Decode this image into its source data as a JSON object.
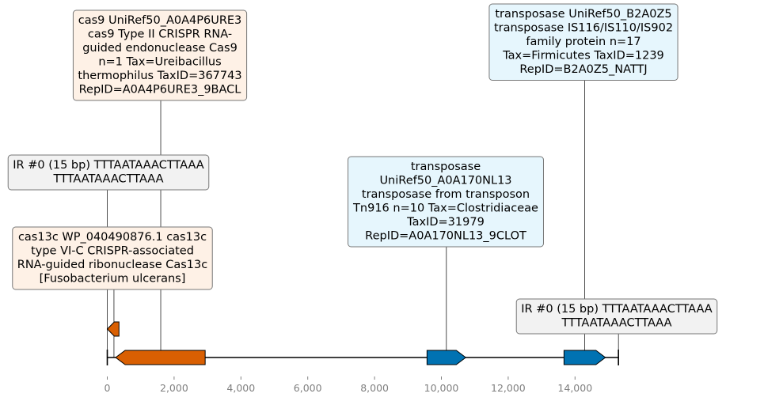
{
  "axis": {
    "xlim": [
      0,
      15500
    ],
    "ticks": [
      {
        "value": 0,
        "label": "0"
      },
      {
        "value": 2000,
        "label": "2,000"
      },
      {
        "value": 4000,
        "label": "4,000"
      },
      {
        "value": 6000,
        "label": "6,000"
      },
      {
        "value": 8000,
        "label": "8,000"
      },
      {
        "value": 10000,
        "label": "10,000"
      },
      {
        "value": 12000,
        "label": "12,000"
      },
      {
        "value": 14000,
        "label": "14,000"
      }
    ]
  },
  "sequence": {
    "start": 0,
    "end": 15300
  },
  "features": [
    {
      "id": "cas13c",
      "start": 0,
      "end": 350,
      "strand": -1,
      "track": "upper",
      "color": "#d95f02"
    },
    {
      "id": "cas9",
      "start": 250,
      "end": 2930,
      "strand": -1,
      "track": "main",
      "color": "#d95f02"
    },
    {
      "id": "transposase-tn916",
      "start": 9570,
      "end": 10730,
      "strand": 1,
      "track": "main",
      "color": "#0072b2"
    },
    {
      "id": "transposase-is116",
      "start": 13670,
      "end": 14910,
      "strand": 1,
      "track": "main",
      "color": "#0072b2"
    }
  ],
  "annotations": [
    {
      "id": "cas9-label",
      "anchor": 1600,
      "fill": "#fef1e6",
      "lines": [
        "cas9 UniRef50_A0A4P6URE3",
        "cas9 Type II CRISPR RNA-",
        "guided endonuclease Cas9",
        "n=1 Tax=Ureibacillus",
        "thermophilus TaxID=367743",
        "RepID=A0A4P6URE3_9BACL"
      ]
    },
    {
      "id": "ir-left-label",
      "anchor": 0,
      "fill": "#f2f2f2",
      "lines": [
        "IR #0 (15 bp) TTTAATAAACTTAAA",
        "TTTAATAAACTTAAA"
      ]
    },
    {
      "id": "cas13c-label",
      "anchor": 200,
      "fill": "#fef1e6",
      "lines": [
        "cas13c WP_040490876.1 cas13c",
        "type VI-C CRISPR-associated",
        "RNA-guided ribonuclease Cas13c",
        "[Fusobacterium ulcerans]"
      ]
    },
    {
      "id": "transposase-b2a0z5-label",
      "anchor": 14290,
      "fill": "#e6f6fd",
      "lines": [
        "transposase UniRef50_B2A0Z5",
        "transposase IS116/IS110/IS902",
        "family protein n=17",
        "Tax=Firmicutes TaxID=1239",
        "RepID=B2A0Z5_NATTJ"
      ]
    },
    {
      "id": "transposase-a0a170-label",
      "anchor": 10150,
      "fill": "#e6f6fd",
      "lines": [
        "transposase",
        "UniRef50_A0A170NL13",
        "transposase from transposon",
        "Tn916 n=10 Tax=Clostridiaceae",
        "TaxID=31979",
        "RepID=A0A170NL13_9CLOT"
      ]
    },
    {
      "id": "ir-right-label",
      "anchor": 15300,
      "fill": "#f2f2f2",
      "lines": [
        "IR #0 (15 bp) TTTAATAAACTTAAA",
        "TTTAATAAACTTAAA"
      ]
    }
  ]
}
